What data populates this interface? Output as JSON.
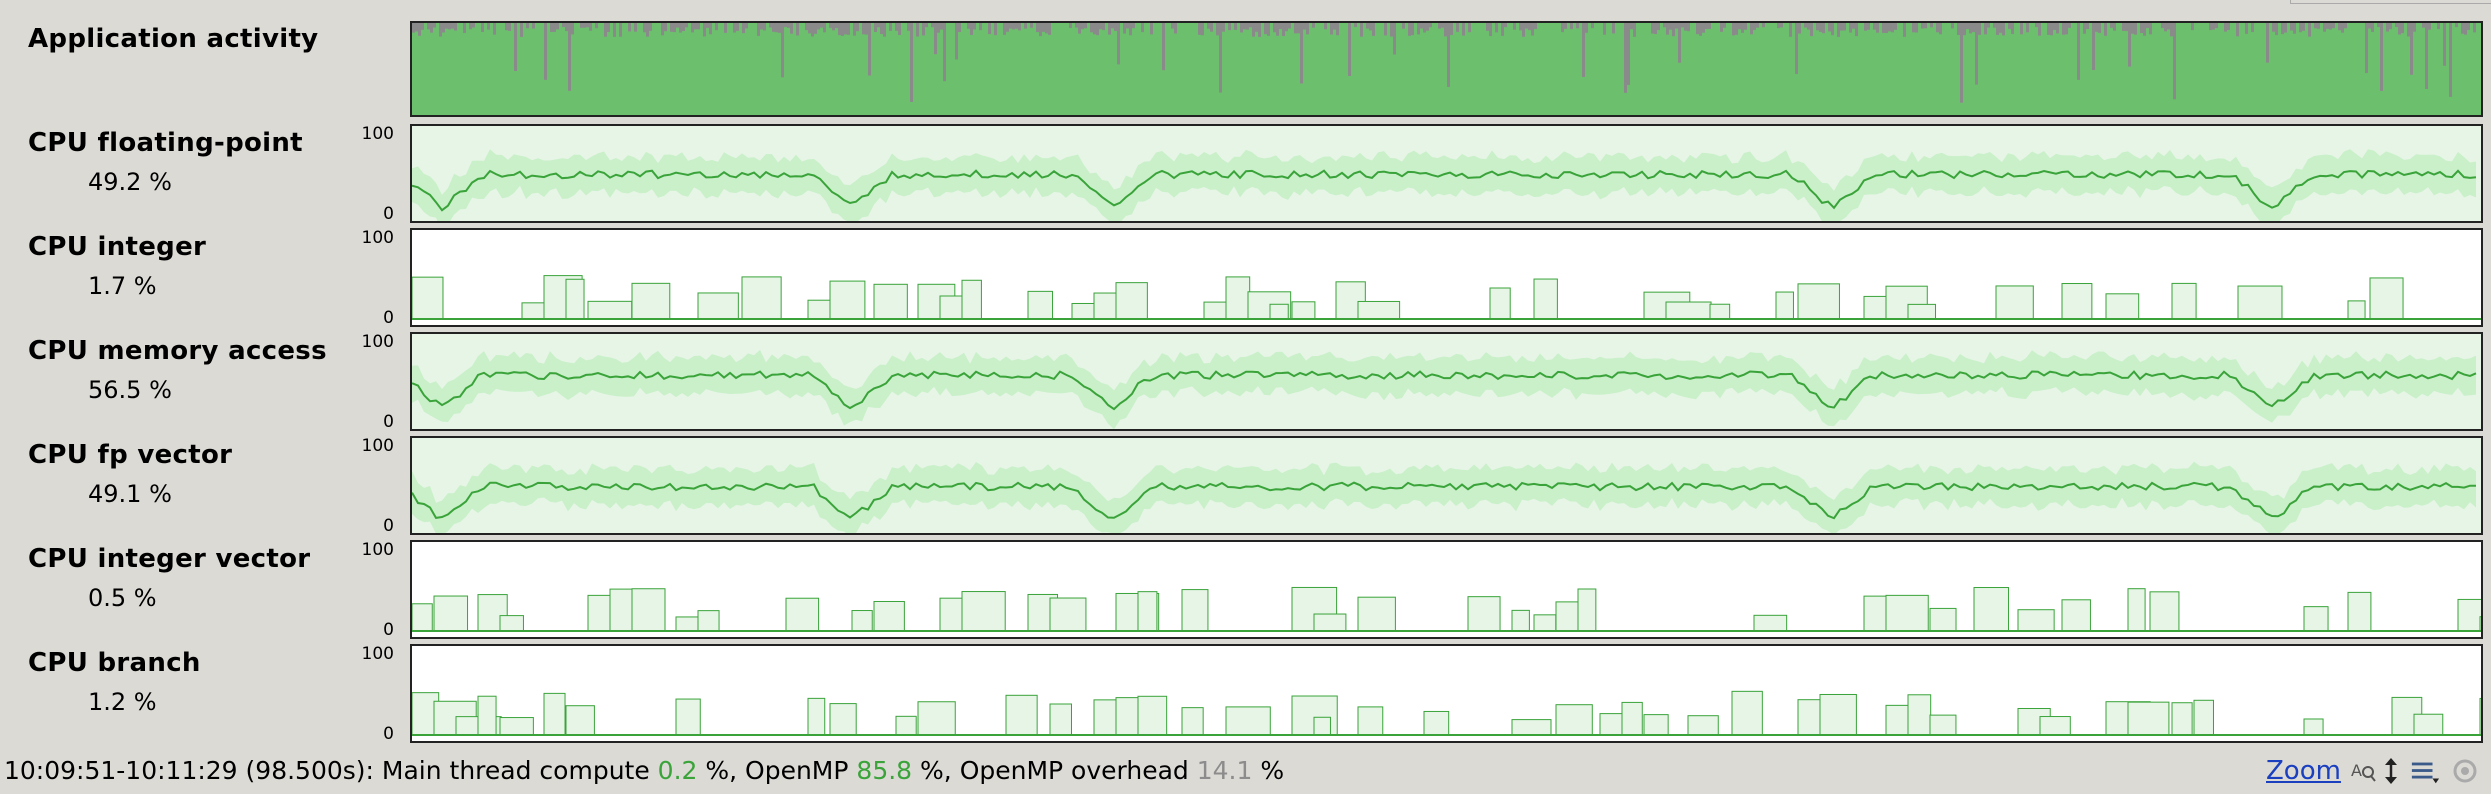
{
  "rows": [
    {
      "label": "Application activity",
      "value": ""
    },
    {
      "label": "CPU floating-point",
      "value": "49.2 %",
      "axis_max": "100",
      "axis_min": "0",
      "level": 0.49
    },
    {
      "label": "CPU integer",
      "value": "1.7 %",
      "axis_max": "100",
      "axis_min": "0",
      "level": 0.02
    },
    {
      "label": "CPU memory access",
      "value": "56.5 %",
      "axis_max": "100",
      "axis_min": "0",
      "level": 0.565
    },
    {
      "label": "CPU fp vector",
      "value": "49.1 %",
      "axis_max": "100",
      "axis_min": "0",
      "level": 0.49
    },
    {
      "label": "CPU integer vector",
      "value": "0.5 %",
      "axis_max": "100",
      "axis_min": "0",
      "level": 0.005
    },
    {
      "label": "CPU branch",
      "value": "1.2 %",
      "axis_max": "100",
      "axis_min": "0",
      "level": 0.012
    }
  ],
  "status": {
    "range": "10:09:51-10:11:29 (98.500s): Main thread compute",
    "main_value": "0.2",
    "sep1": "%, OpenMP",
    "openmp_value": "85.8",
    "sep2": "%, OpenMP overhead",
    "overhead_value": "14.1",
    "sep3": "%",
    "zoom": "Zoom"
  },
  "icons": [
    "zoom-text-icon",
    "vertical-resize-icon",
    "list-menu-icon",
    "reset-icon"
  ],
  "colors": {
    "activity_green": "#6cbf6c",
    "activity_gray": "#8a8a8a",
    "cpu_green": "#3aa33a",
    "band_light": "#c9f0c9",
    "band_pale": "#e6f5e6"
  }
}
